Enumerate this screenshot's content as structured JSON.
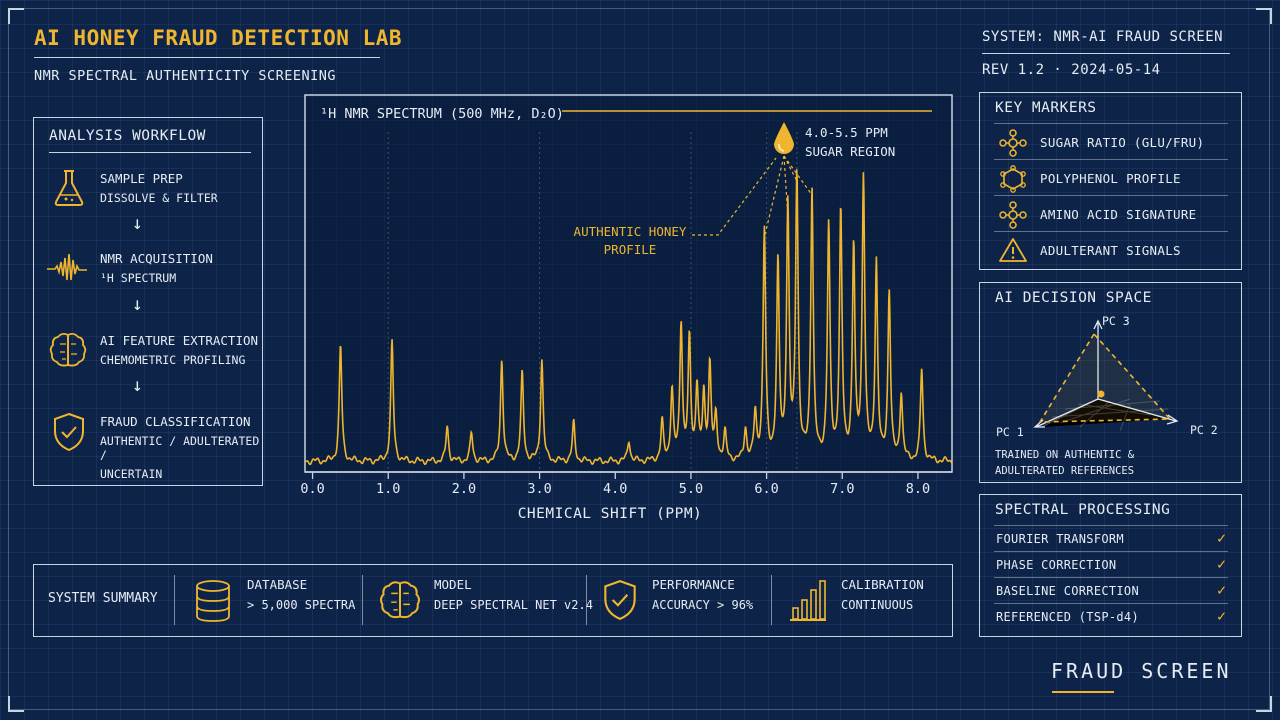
{
  "header": {
    "title": "AI HONEY FRAUD DETECTION LAB",
    "subtitle": "NMR SPECTRAL AUTHENTICITY SCREENING",
    "system": "SYSTEM: NMR-AI FRAUD SCREEN",
    "revision": "REV 1.2 · 2024-05-14"
  },
  "workflow": {
    "title": "ANALYSIS WORKFLOW",
    "steps": [
      {
        "name": "SAMPLE PREP",
        "desc": "DISSOLVE & FILTER",
        "icon": "flask-icon"
      },
      {
        "name": "NMR ACQUISITION",
        "desc": "¹H SPECTRUM",
        "icon": "waveform-icon"
      },
      {
        "name": "AI FEATURE EXTRACTION",
        "desc": "CHEMOMETRIC PROFILING",
        "icon": "brain-icon"
      },
      {
        "name": "FRAUD CLASSIFICATION",
        "desc": "AUTHENTIC / ADULTERATED / UNCERTAIN",
        "desc1": "AUTHENTIC / ADULTERATED /",
        "desc2": "UNCERTAIN",
        "icon": "shield-check-icon"
      }
    ]
  },
  "chart_data": {
    "type": "line",
    "title": "¹H NMR SPECTRUM (500 MHz, D₂O)",
    "xlabel": "CHEMICAL SHIFT (PPM)",
    "ylabel": "",
    "xlim": [
      -0.1,
      8.45
    ],
    "ylim": [
      0,
      1
    ],
    "xticks": [
      0.0,
      1.0,
      2.0,
      3.0,
      4.0,
      5.0,
      6.0,
      7.0,
      8.0
    ],
    "xtick_labels": [
      "0.0",
      "1.0",
      "2.0",
      "3.0",
      "4.0",
      "5.0",
      "6.0",
      "7.0",
      "8.0"
    ],
    "baseline": 0.03,
    "peaks": [
      {
        "ppm": 0.37,
        "height": 0.33
      },
      {
        "ppm": 1.05,
        "height": 0.34
      },
      {
        "ppm": 1.78,
        "height": 0.1
      },
      {
        "ppm": 2.1,
        "height": 0.08
      },
      {
        "ppm": 2.5,
        "height": 0.29
      },
      {
        "ppm": 2.77,
        "height": 0.25
      },
      {
        "ppm": 3.03,
        "height": 0.29
      },
      {
        "ppm": 3.45,
        "height": 0.11
      },
      {
        "ppm": 4.18,
        "height": 0.06
      },
      {
        "ppm": 4.62,
        "height": 0.11
      },
      {
        "ppm": 4.75,
        "height": 0.2
      },
      {
        "ppm": 4.87,
        "height": 0.39
      },
      {
        "ppm": 4.98,
        "height": 0.34
      },
      {
        "ppm": 5.08,
        "height": 0.21
      },
      {
        "ppm": 5.17,
        "height": 0.18
      },
      {
        "ppm": 5.25,
        "height": 0.27
      },
      {
        "ppm": 5.33,
        "height": 0.12
      },
      {
        "ppm": 5.45,
        "height": 0.08
      },
      {
        "ppm": 5.72,
        "height": 0.09
      },
      {
        "ppm": 5.85,
        "height": 0.13
      },
      {
        "ppm": 5.97,
        "height": 0.65
      },
      {
        "ppm": 6.15,
        "height": 0.55
      },
      {
        "ppm": 6.28,
        "height": 0.71
      },
      {
        "ppm": 6.4,
        "height": 0.81
      },
      {
        "ppm": 6.6,
        "height": 0.77
      },
      {
        "ppm": 6.82,
        "height": 0.66
      },
      {
        "ppm": 6.98,
        "height": 0.7
      },
      {
        "ppm": 7.15,
        "height": 0.6
      },
      {
        "ppm": 7.28,
        "height": 0.8
      },
      {
        "ppm": 7.45,
        "height": 0.56
      },
      {
        "ppm": 7.62,
        "height": 0.48
      },
      {
        "ppm": 7.78,
        "height": 0.19
      },
      {
        "ppm": 8.05,
        "height": 0.26
      }
    ],
    "vertical_guides": [
      1.0,
      3.0,
      5.0,
      6.0,
      6.4
    ],
    "annotations": {
      "authentic_label": "AUTHENTIC HONEY PROFILE",
      "authentic_line1": "AUTHENTIC HONEY",
      "authentic_line2": "PROFILE",
      "sugar_range": "4.0-5.5 PPM",
      "sugar_label": "SUGAR REGION",
      "drop_icon": "droplet-icon"
    },
    "color": "#f0b52f"
  },
  "key_markers": {
    "title": "KEY MARKERS",
    "items": [
      {
        "label": "SUGAR RATIO (GLU/FRU)",
        "icon": "molecule-icon"
      },
      {
        "label": "POLYPHENOL PROFILE",
        "icon": "ring-molecule-icon"
      },
      {
        "label": "AMINO ACID SIGNATURE",
        "icon": "molecule-icon"
      },
      {
        "label": "ADULTERANT SIGNALS",
        "icon": "warning-icon"
      }
    ]
  },
  "decision_space": {
    "title": "AI DECISION SPACE",
    "axes": [
      "PC 1",
      "PC 2",
      "PC 3"
    ],
    "caption1": "TRAINED ON AUTHENTIC &",
    "caption2": "ADULTERATED REFERENCES"
  },
  "processing": {
    "title": "SPECTRAL PROCESSING",
    "steps": [
      "FOURIER TRANSFORM",
      "PHASE CORRECTION",
      "BASELINE CORRECTION",
      "REFERENCED (TSP-d4)"
    ],
    "check_glyph": "✓"
  },
  "summary": {
    "title": "SYSTEM SUMMARY",
    "items": [
      {
        "label": "DATABASE",
        "value": "> 5,000 SPECTRA",
        "icon": "database-icon"
      },
      {
        "label": "MODEL",
        "value": "DEEP SPECTRAL NET v2.4",
        "icon": "brain-icon"
      },
      {
        "label": "PERFORMANCE",
        "value": "ACCURACY > 96%",
        "icon": "shield-check-icon"
      },
      {
        "label": "CALIBRATION",
        "value": "CONTINUOUS",
        "icon": "bar-chart-icon"
      }
    ]
  },
  "footer": {
    "badge": "FRAUD SCREEN"
  },
  "colors": {
    "accent": "#f0b52f",
    "background": "#0d2448",
    "line": "#c9d3e2",
    "text": "#e6ecf5"
  }
}
